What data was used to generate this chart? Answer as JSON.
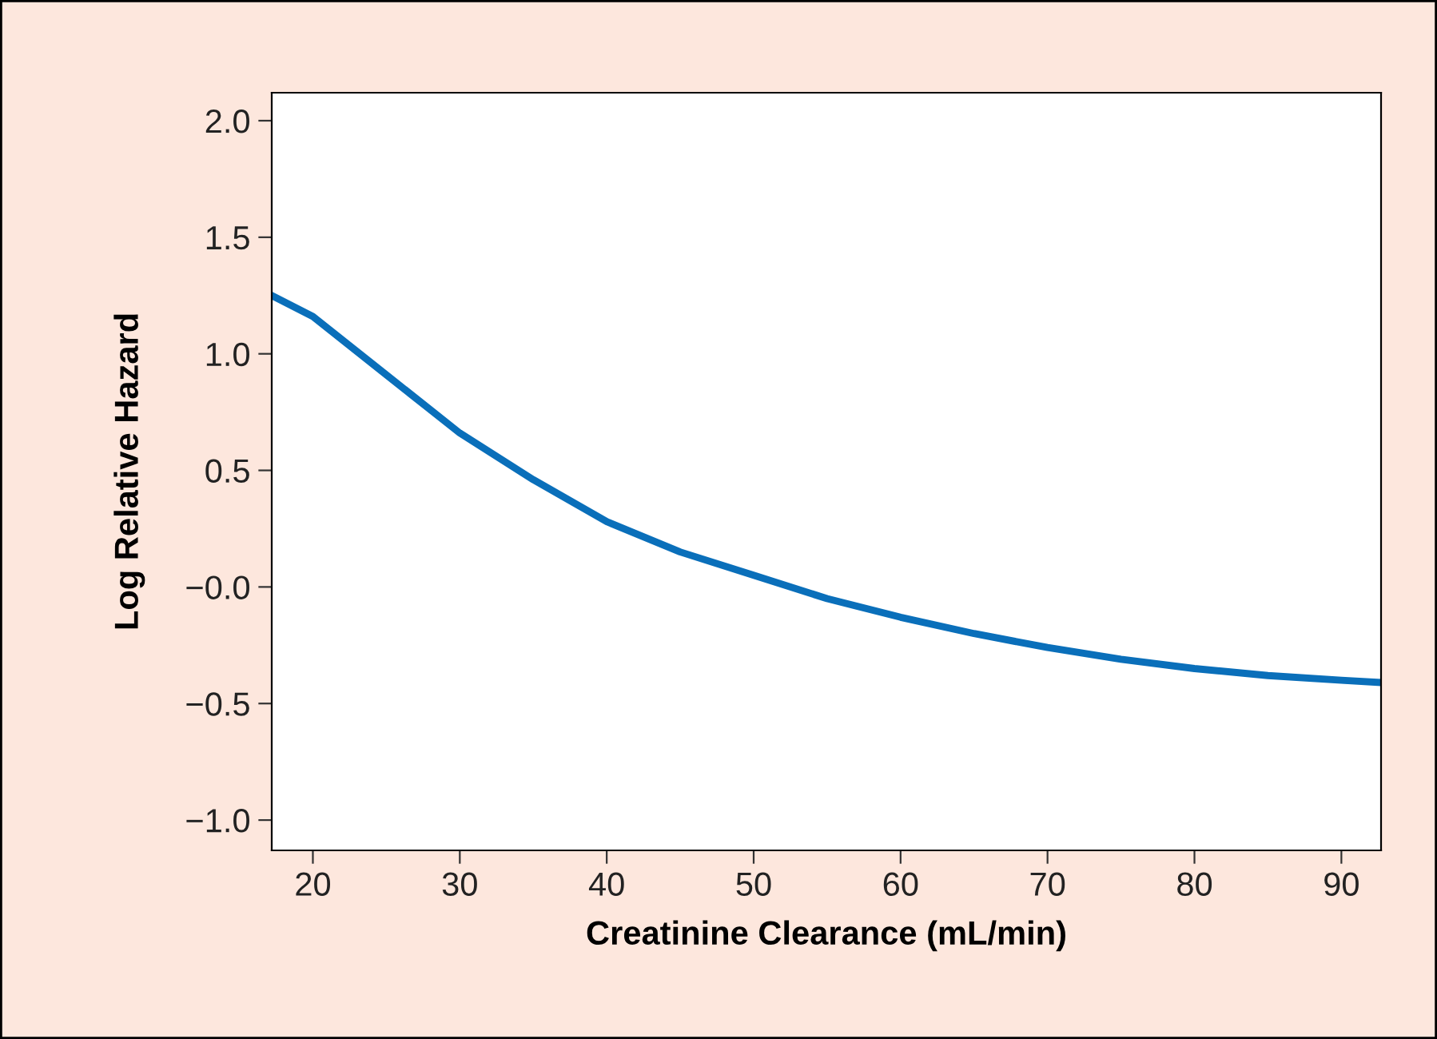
{
  "chart_data": {
    "type": "line",
    "xlabel": "Creatinine Clearance (mL/min)",
    "ylabel": "Log Relative Hazard",
    "x": [
      17.2,
      20,
      25,
      30,
      35,
      40,
      45,
      50,
      55,
      60,
      65,
      70,
      75,
      80,
      85,
      90,
      92.7
    ],
    "series": [
      {
        "color": "#0a6fba",
        "values": [
          1.25,
          1.16,
          0.91,
          0.66,
          0.46,
          0.28,
          0.15,
          0.05,
          -0.05,
          -0.13,
          -0.2,
          -0.26,
          -0.31,
          -0.35,
          -0.38,
          -0.4,
          -0.41
        ]
      }
    ],
    "xlim": [
      17.2,
      92.7
    ],
    "ylim": [
      -1.13,
      2.12
    ],
    "xticks": [
      20,
      30,
      40,
      50,
      60,
      70,
      80,
      90
    ],
    "yticks": [
      {
        "value": 2.0,
        "label": "2.0"
      },
      {
        "value": 1.5,
        "label": "1.5"
      },
      {
        "value": 1.0,
        "label": "1.0"
      },
      {
        "value": 0.5,
        "label": "0.5"
      },
      {
        "value": 0,
        "label": "−0.0"
      },
      {
        "value": -0.5,
        "label": "−0.5"
      },
      {
        "value": -1.0,
        "label": "−1.0"
      }
    ],
    "grid": false,
    "legend": false,
    "marker": "none",
    "line_style": "solid"
  }
}
